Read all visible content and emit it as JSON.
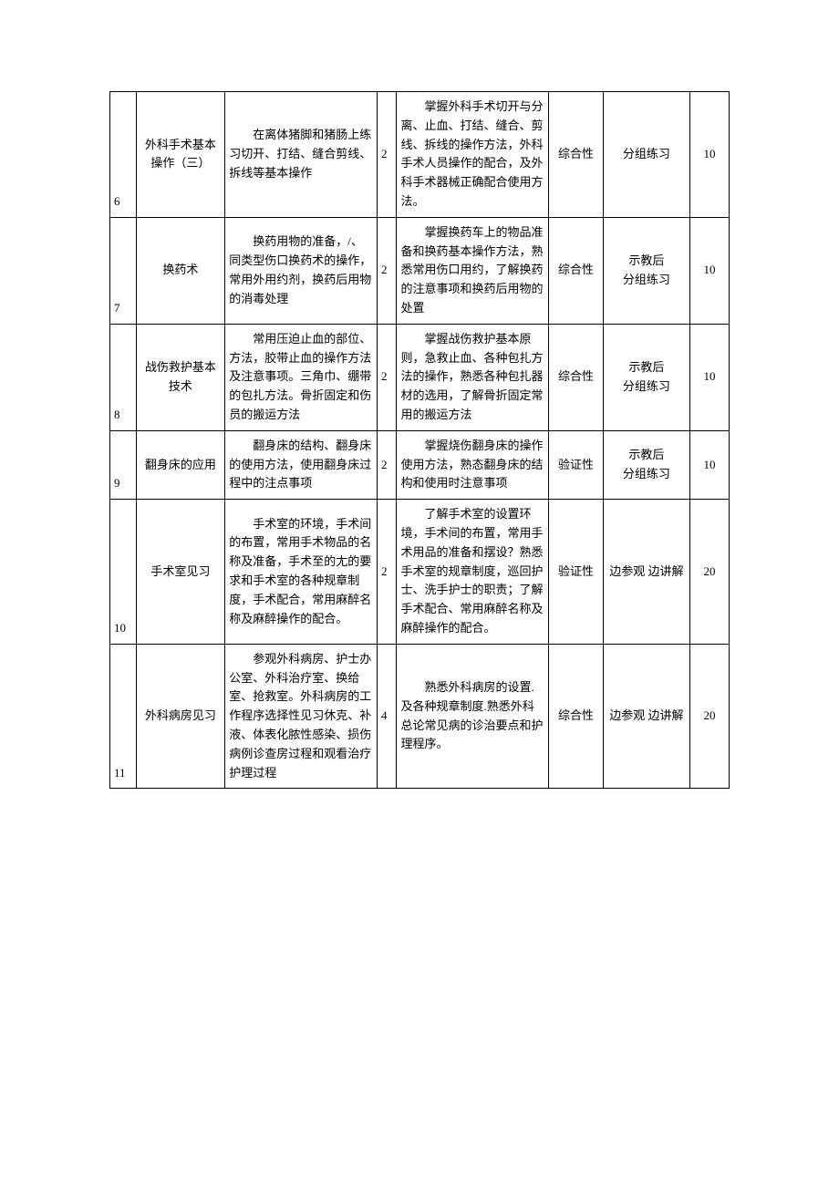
{
  "rows": [
    {
      "idx": "6",
      "name": "外科手术基本操作（三）",
      "content": "　　在离体猪脚和猪肠上练习切开、打结、缝合剪线、拆线等基本操作",
      "hours": "2",
      "goal": "　　掌握外科手术切开与分离、止血、打结、缝合、剪线、拆线的操作方法，外科手术人员操作的配合，及外科手术器械正确配合使用方法。",
      "type": "综合性",
      "method": "分组练习",
      "score": "10"
    },
    {
      "idx": "7",
      "name": "换药术",
      "content": "　　换药用物的准备，/、同类型伤口换药术的操作，常用外用约剂，换药后用物的消毒处理",
      "hours": "2",
      "goal": "　　掌握换药车上的物品准备和换药基本操作方法，熟悉常用伤口用约，了解换药的注意事项和换药后用物的处置",
      "type": "综合性",
      "method": "示教后\n分组练习",
      "score": "10"
    },
    {
      "idx": "8",
      "name": "战伤救护基本技术",
      "content": "　　常用压迫止血的部位、方法，胶带止血的操作方法及注意事项。三角巾、绷带的包扎方法。骨折固定和伤员的搬运方法",
      "hours": "2",
      "goal": "　　掌握战伤救护基本原则，急救止血、各种包扎方法的操作，熟悉各种包扎器材的选用，了解骨折固定常用的搬运方法",
      "type": "综合性",
      "method": "示教后\n分组练习",
      "score": "10"
    },
    {
      "idx": "9",
      "name": "翻身床的应用",
      "content": "　　翻身床的结构、翻身床的使用方法，使用翻身床过程中的注点事项",
      "hours": "2",
      "goal": "　　掌握烧伤翻身床的操作使用方法，熟态翻身床的结构和使用时注意事项",
      "type": "验证性",
      "method": "示教后\n分组练习",
      "score": "10"
    },
    {
      "idx": "10",
      "name": "手术室见习",
      "content": "　　手术室的环境，手术间的布置，常用手术物品的名称及准备，手术至的尢的要求和手术室的各种规章制度，手术配合，常用麻醉名称及麻醉操作的配合。",
      "hours": "2",
      "goal": "　　了解手术室的设置环境，手术间的布置，常用手术用品的准备和摆设？熟悉手术室的规章制度，巡回护士、洗手护士的职责；了解手术配合、常用麻醉名称及麻醉操作的配合。",
      "type": "验证性",
      "method": "边参观 边讲解",
      "score": "20"
    },
    {
      "idx": "11",
      "name": "外科病房见习",
      "content": "　　参观外科病房、护士办公室、外科治疗室、换给室、抢救室。外科病房的工作程序选择性见习休克、补液、体表化脓性感染、损伤病例诊查房过程和观看治疗护理过程",
      "hours": "4",
      "goal": "　　熟悉外科病房的设置.及各种规章制度.熟悉外科总论常见病的诊治要点和护理程序。",
      "type": "综合性",
      "method": "边参观 边讲解",
      "score": "20"
    }
  ]
}
